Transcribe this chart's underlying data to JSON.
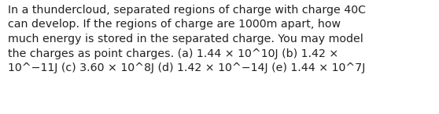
{
  "text": "In a thundercloud, separated regions of charge with charge 40C\ncan develop. If the regions of charge are 1000m apart, how\nmuch energy is stored in the separated charge. You may model\nthe charges as point charges. (a) 1.44 × 10^10J (b) 1.42 ×\n10^−11J (c) 3.60 × 10^8J (d) 1.42 × 10^−14J (e) 1.44 × 10^7J",
  "background_color": "#ffffff",
  "text_color": "#222222",
  "font_size": 10.2,
  "fig_width": 5.58,
  "fig_height": 1.46,
  "dpi": 100
}
